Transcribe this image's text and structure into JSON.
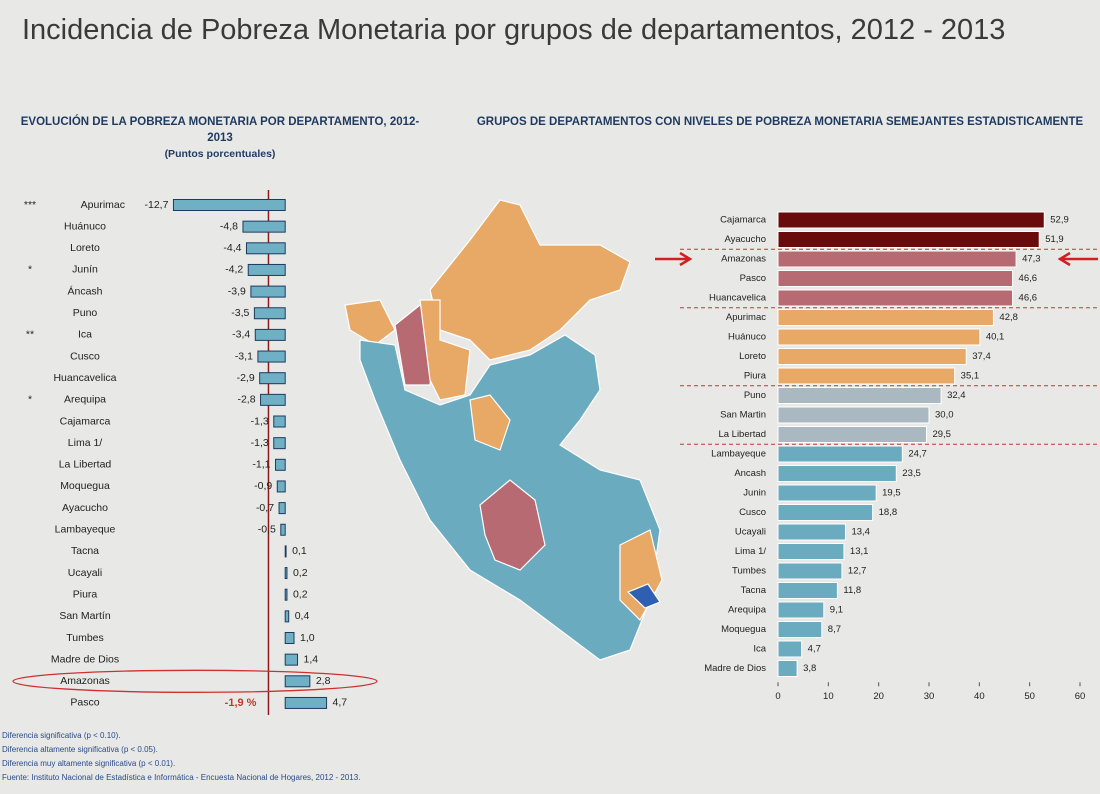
{
  "title": "Incidencia de Pobreza Monetaria por grupos de departamentos, 2012 - 2013",
  "chart_data": [
    {
      "type": "bar",
      "orientation": "horizontal",
      "title": "EVOLUCIÓN DE LA POBREZA MONETARIA POR DEPARTAMENTO, 2012- 2013",
      "subtitle": "(Puntos porcentuales)",
      "categories": [
        "Apurimac",
        "Huánuco",
        "Loreto",
        "Junín",
        "Áncash",
        "Puno",
        "Ica",
        "Cusco",
        "Huancavelica",
        "Arequipa",
        "Cajamarca",
        "Lima 1/",
        "La Libertad",
        "Moquegua",
        "Ayacucho",
        "Lambayeque",
        "Tacna",
        "Ucayali",
        "Piura",
        "San Martín",
        "Tumbes",
        "Madre de Dios",
        "Amazonas",
        "Pasco"
      ],
      "markers": [
        "***",
        null,
        null,
        "*",
        null,
        null,
        "**",
        null,
        null,
        "*",
        null,
        null,
        null,
        null,
        null,
        null,
        null,
        null,
        null,
        null,
        null,
        null,
        null,
        null
      ],
      "values": [
        -12.7,
        -4.8,
        -4.4,
        -4.2,
        -3.9,
        -3.5,
        -3.4,
        -3.1,
        -2.9,
        -2.8,
        -1.3,
        -1.3,
        -1.1,
        -0.9,
        -0.7,
        -0.5,
        0.1,
        0.2,
        0.2,
        0.4,
        1.0,
        1.4,
        2.8,
        4.7
      ],
      "value_labels": [
        "-12,7",
        "-4,8",
        "-4,4",
        "-4,2",
        "-3,9",
        "-3,5",
        "-3,4",
        "-3,1",
        "-2,9",
        "-2,8",
        "-1,3",
        "-1,3",
        "-1,1",
        "-0,9",
        "-0,7",
        "-0,5",
        "0,1",
        "0,2",
        "0,2",
        "0,4",
        "1,0",
        "1,4",
        "2,8",
        "4,7"
      ],
      "color": "#6fb0c4",
      "xlim": [
        -14,
        6
      ],
      "annotations": [
        {
          "value": -1.9,
          "label": "-1,9 %"
        }
      ]
    },
    {
      "type": "bar",
      "orientation": "horizontal",
      "title": "GRUPOS DE DEPARTAMENTOS CON NIVELES DE POBREZA MONETARIA SEMEJANTES ESTADISTICAMENTE",
      "categories": [
        "Cajamarca",
        "Ayacucho",
        "Amazonas",
        "Pasco",
        "Huancavelica",
        "Apurimac",
        "Huánuco",
        "Loreto",
        "Piura",
        "Puno",
        "San Martin",
        "La Libertad",
        "Lambayeque",
        "Ancash",
        "Junin",
        "Cusco",
        "Ucayali",
        "Lima 1/",
        "Tumbes",
        "Tacna",
        "Arequipa",
        "Moquegua",
        "Ica",
        "Madre de Dios"
      ],
      "values": [
        52.9,
        51.9,
        47.3,
        46.6,
        46.6,
        42.8,
        40.1,
        37.4,
        35.1,
        32.4,
        30.0,
        29.5,
        24.7,
        23.5,
        19.5,
        18.8,
        13.4,
        13.1,
        12.7,
        11.8,
        9.1,
        8.7,
        4.7,
        3.8
      ],
      "value_labels": [
        "52,9",
        "51,9",
        "47,3",
        "46,6",
        "46,6",
        "42,8",
        "40,1",
        "37,4",
        "35,1",
        "32,4",
        "30,0",
        "29,5",
        "24,7",
        "23,5",
        "19,5",
        "18,8",
        "13,4",
        "13,1",
        "12,7",
        "11,8",
        "9,1",
        "8,7",
        "4,7",
        "3,8"
      ],
      "colors": [
        "#6a0b0b",
        "#6a0b0b",
        "#b86a72",
        "#b86a72",
        "#b86a72",
        "#e8a866",
        "#e8a866",
        "#e8a866",
        "#e8a866",
        "#a9b8c1",
        "#a9b8c1",
        "#a9b8c1",
        "#6aabc0",
        "#6aabc0",
        "#6aabc0",
        "#6aabc0",
        "#6aabc0",
        "#6aabc0",
        "#6aabc0",
        "#6aabc0",
        "#6aabc0",
        "#6aabc0",
        "#6aabc0",
        "#6aabc0"
      ],
      "xlim": [
        0,
        60
      ],
      "xticks": [
        0,
        10,
        20,
        30,
        40,
        50,
        60
      ]
    }
  ],
  "footnotes": [
    "Diferencia significativa (p < 0.10).",
    "Diferencia altamente significativa (p < 0.05).",
    "Diferencia muy altamente significativa (p < 0.01).",
    "Fuente: Instituto Nacional de Estadística e Informática - Encuesta Nacional de Hogares, 2012 - 2013."
  ]
}
